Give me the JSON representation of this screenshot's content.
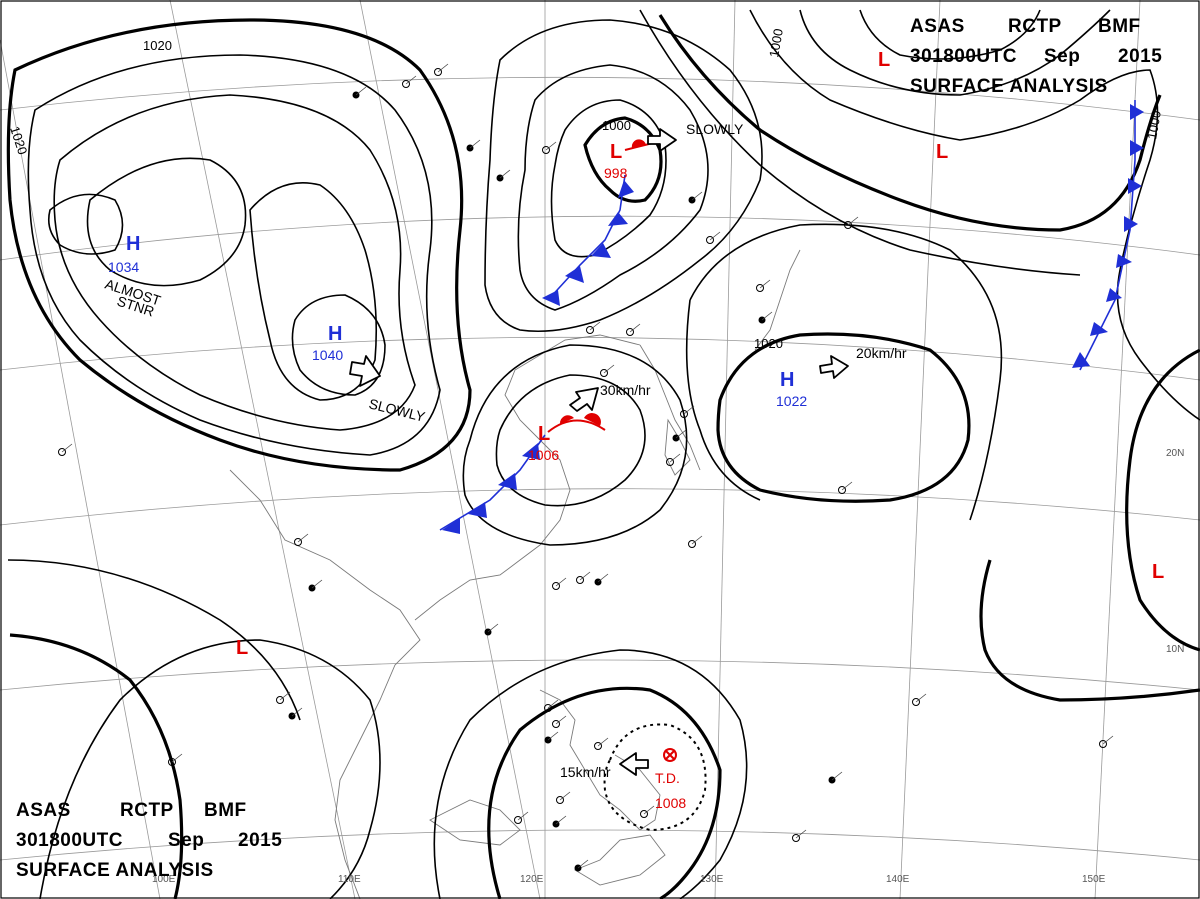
{
  "header_top": {
    "line1": [
      "ASAS",
      "RCTP",
      "BMF"
    ],
    "line2": [
      "301800UTC",
      "Sep",
      "2015"
    ],
    "line3": "SURFACE  ANALYSIS"
  },
  "header_bottom": {
    "line1": [
      "ASAS",
      "RCTP",
      "BMF"
    ],
    "line2": [
      "301800UTC",
      "Sep",
      "2015"
    ],
    "line3": "SURFACE  ANALYSIS"
  },
  "pressure_centers": [
    {
      "name": "high-1034",
      "symbol": "H",
      "value": "1034",
      "color": "#1f2fd6"
    },
    {
      "name": "high-1040",
      "symbol": "H",
      "value": "1040",
      "color": "#1f2fd6"
    },
    {
      "name": "high-1022",
      "symbol": "H",
      "value": "1022",
      "color": "#1f2fd6"
    },
    {
      "name": "low-998",
      "symbol": "L",
      "value": "998",
      "color": "#e00000"
    },
    {
      "name": "low-1006",
      "symbol": "L",
      "value": "1006",
      "color": "#e00000"
    },
    {
      "name": "low-northeast",
      "symbol": "L",
      "value": "",
      "color": "#e00000"
    },
    {
      "name": "low-north",
      "symbol": "L",
      "value": "",
      "color": "#e00000"
    },
    {
      "name": "low-west",
      "symbol": "L",
      "value": "",
      "color": "#e00000"
    },
    {
      "name": "low-east",
      "symbol": "L",
      "value": "",
      "color": "#e00000"
    }
  ],
  "tropical_depression": {
    "label": "T.D.",
    "pressure": "1008",
    "motion": "15km/hr"
  },
  "motion_labels": {
    "almost": "ALMOST",
    "stnr": "STNR",
    "slowly_high": "SLOWLY",
    "slowly_low": "SLOWLY",
    "low_1006": "30km/hr",
    "high_1022": "20km/hr"
  },
  "isobar_labels": {
    "nw_1020": "1020",
    "w_1020": "1020",
    "low_1000": "1000",
    "ne_1000": "1000",
    "ne_1000_b": "1000",
    "high_1020": "1020"
  },
  "axis_labels": {
    "lon_100": "100E",
    "lon_110": "110E",
    "lon_120": "120E",
    "lon_130": "130E",
    "lon_140": "140E",
    "lon_150": "150E",
    "lat_20": "20N",
    "lat_10": "10N"
  },
  "colors": {
    "high": "#1f2fd6",
    "low": "#e00000",
    "cold_front": "#1f2fd6",
    "warm_front": "#e00000"
  }
}
